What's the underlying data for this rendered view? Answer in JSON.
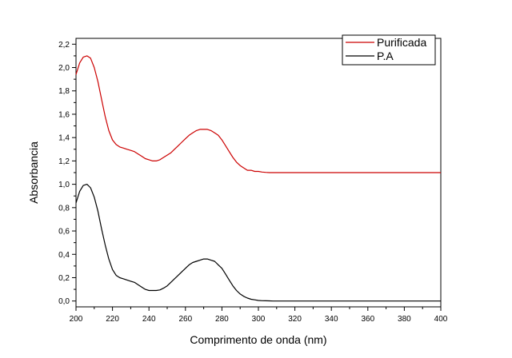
{
  "chart_data": {
    "type": "line",
    "title": "",
    "xlabel": "Comprimento de onda (nm)",
    "ylabel": "Absorbancia",
    "xlim": [
      200,
      400
    ],
    "ylim": [
      -0.05,
      2.25
    ],
    "xticks": [
      200,
      220,
      240,
      260,
      280,
      300,
      320,
      340,
      360,
      380,
      400
    ],
    "yticks": [
      0.0,
      0.2,
      0.4,
      0.6,
      0.8,
      1.0,
      1.2,
      1.4,
      1.6,
      1.8,
      2.0,
      2.2
    ],
    "xtick_labels": [
      "200",
      "220",
      "240",
      "260",
      "280",
      "300",
      "320",
      "340",
      "360",
      "380",
      "400"
    ],
    "ytick_labels": [
      "0,0",
      "0,2",
      "0,4",
      "0,6",
      "0,8",
      "1,0",
      "1,2",
      "1,4",
      "1,6",
      "1,8",
      "2,0",
      "2,2"
    ],
    "grid": false,
    "legend_position": "top-right",
    "series": [
      {
        "name": "Purificada",
        "color": "#cc0000",
        "x": [
          200,
          202,
          204,
          206,
          208,
          210,
          212,
          214,
          216,
          218,
          220,
          222,
          224,
          226,
          228,
          230,
          232,
          234,
          236,
          238,
          240,
          242,
          244,
          246,
          248,
          250,
          252,
          254,
          256,
          258,
          260,
          262,
          264,
          266,
          268,
          270,
          272,
          274,
          276,
          278,
          280,
          282,
          284,
          286,
          288,
          290,
          292,
          294,
          296,
          298,
          300,
          302,
          304,
          306,
          308,
          310,
          315,
          320,
          330,
          340,
          350,
          360,
          370,
          380,
          390,
          400
        ],
        "y": [
          1.94,
          2.04,
          2.09,
          2.1,
          2.08,
          2.0,
          1.88,
          1.73,
          1.58,
          1.46,
          1.38,
          1.34,
          1.32,
          1.31,
          1.3,
          1.29,
          1.28,
          1.26,
          1.24,
          1.22,
          1.21,
          1.2,
          1.2,
          1.21,
          1.23,
          1.25,
          1.27,
          1.3,
          1.33,
          1.36,
          1.39,
          1.42,
          1.44,
          1.46,
          1.47,
          1.47,
          1.47,
          1.46,
          1.44,
          1.42,
          1.38,
          1.33,
          1.28,
          1.23,
          1.19,
          1.16,
          1.14,
          1.12,
          1.12,
          1.11,
          1.11,
          1.105,
          1.102,
          1.1,
          1.1,
          1.1,
          1.1,
          1.1,
          1.1,
          1.1,
          1.1,
          1.1,
          1.1,
          1.1,
          1.1,
          1.1
        ]
      },
      {
        "name": "P.A",
        "color": "#000000",
        "x": [
          200,
          202,
          204,
          206,
          208,
          210,
          212,
          214,
          216,
          218,
          220,
          222,
          224,
          226,
          228,
          230,
          232,
          234,
          236,
          238,
          240,
          242,
          244,
          246,
          248,
          250,
          252,
          254,
          256,
          258,
          260,
          262,
          264,
          266,
          268,
          270,
          272,
          274,
          276,
          278,
          280,
          282,
          284,
          286,
          288,
          290,
          292,
          294,
          296,
          298,
          300,
          302,
          304,
          306,
          308,
          310,
          315,
          320,
          330,
          340,
          350,
          360,
          370,
          380,
          390,
          400
        ],
        "y": [
          0.84,
          0.94,
          0.99,
          1.0,
          0.97,
          0.89,
          0.77,
          0.62,
          0.48,
          0.36,
          0.27,
          0.22,
          0.2,
          0.19,
          0.18,
          0.17,
          0.16,
          0.14,
          0.12,
          0.1,
          0.09,
          0.09,
          0.09,
          0.095,
          0.11,
          0.13,
          0.16,
          0.19,
          0.22,
          0.25,
          0.28,
          0.31,
          0.33,
          0.34,
          0.35,
          0.36,
          0.36,
          0.35,
          0.34,
          0.31,
          0.28,
          0.23,
          0.18,
          0.13,
          0.09,
          0.06,
          0.04,
          0.025,
          0.015,
          0.01,
          0.005,
          0.003,
          0.002,
          0.001,
          0.0,
          0.0,
          0.0,
          0.0,
          0.0,
          0.0,
          0.0,
          0.0,
          0.0,
          0.0,
          0.0,
          0.0
        ]
      }
    ]
  }
}
